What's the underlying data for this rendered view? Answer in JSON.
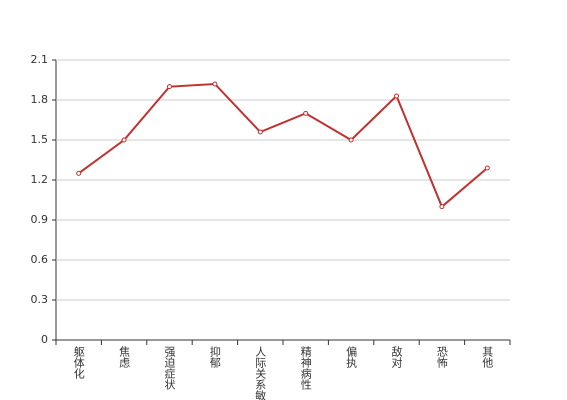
{
  "chart_data": {
    "type": "line",
    "categories": [
      "躯体化",
      "焦虑",
      "强迫症状",
      "抑郁",
      "人际关系敏感",
      "精神病性",
      "偏执",
      "敌对",
      "恐怖",
      "其他"
    ],
    "values": [
      1.25,
      1.5,
      1.9,
      1.92,
      1.56,
      1.7,
      1.5,
      1.83,
      1.0,
      1.29
    ],
    "color": "#c0312f",
    "ylim": [
      0,
      2.1
    ],
    "yticks": [
      0,
      0.3,
      0.6,
      0.9,
      1.2,
      1.5,
      1.8,
      2.1
    ],
    "grid": true
  }
}
